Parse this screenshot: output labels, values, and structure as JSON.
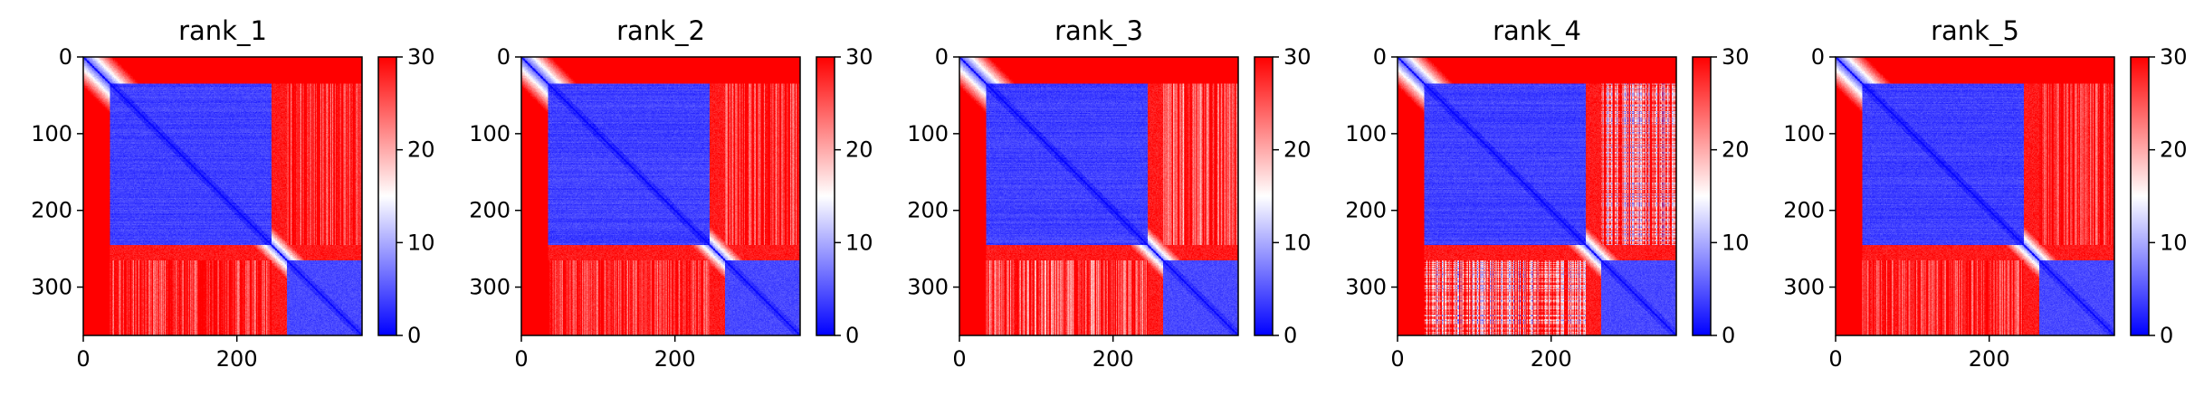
{
  "figure": {
    "panel_count": 5,
    "colormap": {
      "name": "bwr",
      "low": "#0000ff",
      "mid": "#ffffff",
      "high": "#ff0000"
    }
  },
  "chart_data": [
    {
      "type": "heatmap",
      "title": "rank_1",
      "matrix_size": 363,
      "domain_boundaries": [
        35,
        245,
        265,
        363
      ],
      "xlim": [
        0,
        363
      ],
      "ylim": [
        363,
        0
      ],
      "xticks": [
        0,
        200
      ],
      "yticks": [
        0,
        100,
        200,
        300
      ],
      "colorbar": {
        "range": [
          0,
          30
        ],
        "ticks": [
          0,
          10,
          20,
          30
        ]
      },
      "variant": "standard"
    },
    {
      "type": "heatmap",
      "title": "rank_2",
      "matrix_size": 363,
      "domain_boundaries": [
        35,
        245,
        265,
        363
      ],
      "xlim": [
        0,
        363
      ],
      "ylim": [
        363,
        0
      ],
      "xticks": [
        0,
        200
      ],
      "yticks": [
        0,
        100,
        200,
        300
      ],
      "colorbar": {
        "range": [
          0,
          30
        ],
        "ticks": [
          0,
          10,
          20,
          30
        ]
      },
      "variant": "standard"
    },
    {
      "type": "heatmap",
      "title": "rank_3",
      "matrix_size": 363,
      "domain_boundaries": [
        35,
        245,
        265,
        363
      ],
      "xlim": [
        0,
        363
      ],
      "ylim": [
        363,
        0
      ],
      "xticks": [
        0,
        200
      ],
      "yticks": [
        0,
        100,
        200,
        300
      ],
      "colorbar": {
        "range": [
          0,
          30
        ],
        "ticks": [
          0,
          10,
          20,
          30
        ]
      },
      "variant": "striped"
    },
    {
      "type": "heatmap",
      "title": "rank_4",
      "matrix_size": 363,
      "domain_boundaries": [
        35,
        245,
        265,
        363
      ],
      "xlim": [
        0,
        363
      ],
      "ylim": [
        363,
        0
      ],
      "xticks": [
        0,
        200
      ],
      "yticks": [
        0,
        100,
        200,
        300
      ],
      "colorbar": {
        "range": [
          0,
          30
        ],
        "ticks": [
          0,
          10,
          20,
          30
        ]
      },
      "variant": "mixed"
    },
    {
      "type": "heatmap",
      "title": "rank_5",
      "matrix_size": 363,
      "domain_boundaries": [
        35,
        245,
        265,
        363
      ],
      "xlim": [
        0,
        363
      ],
      "ylim": [
        363,
        0
      ],
      "xticks": [
        0,
        200
      ],
      "yticks": [
        0,
        100,
        200,
        300
      ],
      "colorbar": {
        "range": [
          0,
          30
        ],
        "ticks": [
          0,
          10,
          20,
          30
        ]
      },
      "variant": "standard"
    }
  ]
}
